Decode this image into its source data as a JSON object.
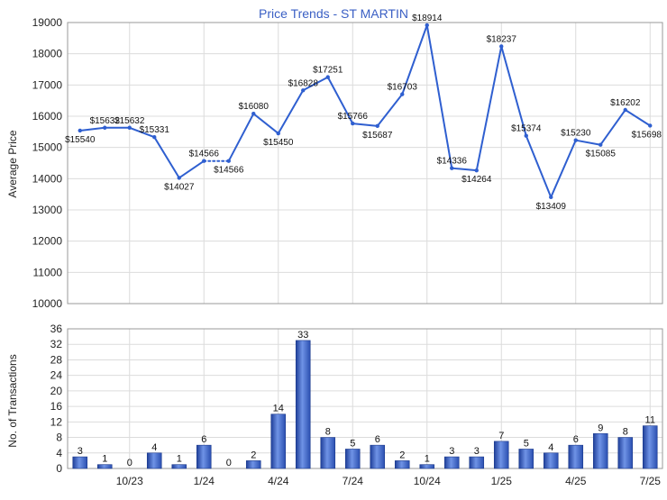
{
  "chart_data": [
    {
      "type": "line",
      "title": "Price Trends - ST MARTIN",
      "ylabel": "Average Price",
      "xlabel": "",
      "ylim": [
        10000,
        19000
      ],
      "yticks": [
        10000,
        11000,
        12000,
        13000,
        14000,
        15000,
        16000,
        17000,
        18000,
        19000
      ],
      "grid": true,
      "color": "#2f5fd0",
      "months": [
        "8/23",
        "9/23",
        "10/23",
        "11/23",
        "12/23",
        "1/24",
        "2/24",
        "3/24",
        "4/24",
        "5/24",
        "6/24",
        "7/24",
        "8/24",
        "9/24",
        "10/24",
        "11/24",
        "12/24",
        "1/25",
        "2/25",
        "3/25",
        "4/25",
        "5/25",
        "6/25",
        "7/25"
      ],
      "values": [
        15540,
        15632,
        15632,
        15331,
        14027,
        14566,
        14566,
        16080,
        15450,
        16828,
        17251,
        15766,
        15687,
        16703,
        18914,
        14336,
        14264,
        18237,
        15374,
        13409,
        15230,
        15085,
        16202,
        15698
      ],
      "labels": [
        "$15540",
        "$15632",
        "$15632",
        "$15331",
        "$14027",
        "$14566",
        "$14566",
        "$16080",
        "$15450",
        "$16828",
        "$17251",
        "$15766",
        "$15687",
        "$16703",
        "$18914",
        "$14336",
        "$14264",
        "$18237",
        "$15374",
        "$13409",
        "$15230",
        "$15085",
        "$16202",
        "$15698"
      ],
      "dotted_segment": [
        5,
        6
      ]
    },
    {
      "type": "bar",
      "ylabel": "No. of Transactions",
      "xlabel": "",
      "ylim": [
        0,
        36
      ],
      "yticks": [
        0,
        4,
        8,
        12,
        16,
        20,
        24,
        28,
        32,
        36
      ],
      "grid": true,
      "color": "#3a63c8",
      "categories": [
        "8/23",
        "9/23",
        "10/23",
        "11/23",
        "12/23",
        "1/24",
        "2/24",
        "3/24",
        "4/24",
        "5/24",
        "6/24",
        "7/24",
        "8/24",
        "9/24",
        "10/24",
        "11/24",
        "12/24",
        "1/25",
        "2/25",
        "3/25",
        "4/25",
        "5/25",
        "6/25",
        "7/25"
      ],
      "values": [
        3,
        1,
        0,
        4,
        1,
        6,
        0,
        2,
        14,
        33,
        8,
        5,
        6,
        2,
        1,
        3,
        3,
        7,
        5,
        4,
        6,
        9,
        8,
        11
      ],
      "value_labels": [
        "3",
        "1",
        "0",
        "4",
        "1",
        "6",
        "0",
        "2",
        "14",
        "33",
        "8",
        "5",
        "6",
        "2",
        "1",
        "3",
        "3",
        "7",
        "5",
        "4",
        "6",
        "9",
        "8",
        "11"
      ],
      "xtick_labels": [
        {
          "index": 2,
          "label": "10/23"
        },
        {
          "index": 5,
          "label": "1/24"
        },
        {
          "index": 8,
          "label": "4/24"
        },
        {
          "index": 11,
          "label": "7/24"
        },
        {
          "index": 14,
          "label": "10/24"
        },
        {
          "index": 17,
          "label": "1/25"
        },
        {
          "index": 20,
          "label": "4/25"
        },
        {
          "index": 23,
          "label": "7/25"
        }
      ]
    }
  ]
}
